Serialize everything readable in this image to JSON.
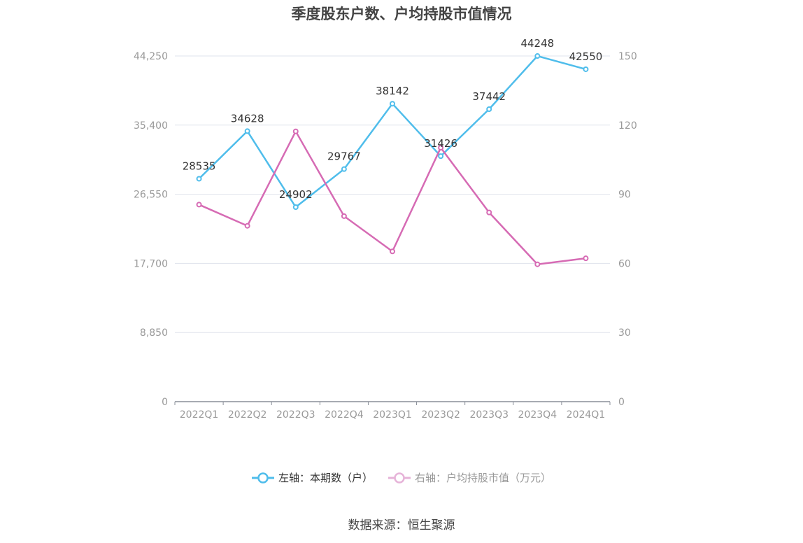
{
  "title": "季度股东户数、户均持股市值情况",
  "source": "数据来源：恒生聚源",
  "legend": {
    "left": "左轴：本期数（户）",
    "right": "右轴：户均持股市值（万元）"
  },
  "colors": {
    "left_series": "#4fbdeb",
    "right_series": "#d66bb4",
    "right_legend_faded": "#e6b3d8",
    "grid": "#dfe3ec",
    "axis_text": "#999999",
    "label_text": "#333333"
  },
  "chart_data": {
    "type": "line",
    "categories": [
      "2022Q1",
      "2022Q2",
      "2022Q3",
      "2022Q4",
      "2023Q1",
      "2023Q2",
      "2023Q3",
      "2023Q4",
      "2024Q1"
    ],
    "left_axis": {
      "ticks": [
        "0",
        "8,850",
        "17,700",
        "26,550",
        "35,400",
        "44,250"
      ],
      "range": [
        0,
        44250
      ]
    },
    "right_axis": {
      "ticks": [
        "0",
        "30",
        "60",
        "90",
        "120",
        "150"
      ],
      "range": [
        0,
        150
      ]
    },
    "series": [
      {
        "name": "左轴：本期数（户）",
        "axis": "left",
        "values": [
          28535,
          34628,
          24902,
          29767,
          38142,
          31426,
          37442,
          44248,
          42550
        ],
        "labels": [
          "28535",
          "34628",
          "24902",
          "29767",
          "38142",
          "31426",
          "37442",
          "44248",
          "42550"
        ]
      },
      {
        "name": "右轴：户均持股市值（万元）",
        "axis": "right",
        "values": [
          85.5,
          76.3,
          117.3,
          80.5,
          65.2,
          110.2,
          82.1,
          59.6,
          62.2
        ]
      }
    ],
    "grid": true,
    "legend_position": "bottom"
  }
}
